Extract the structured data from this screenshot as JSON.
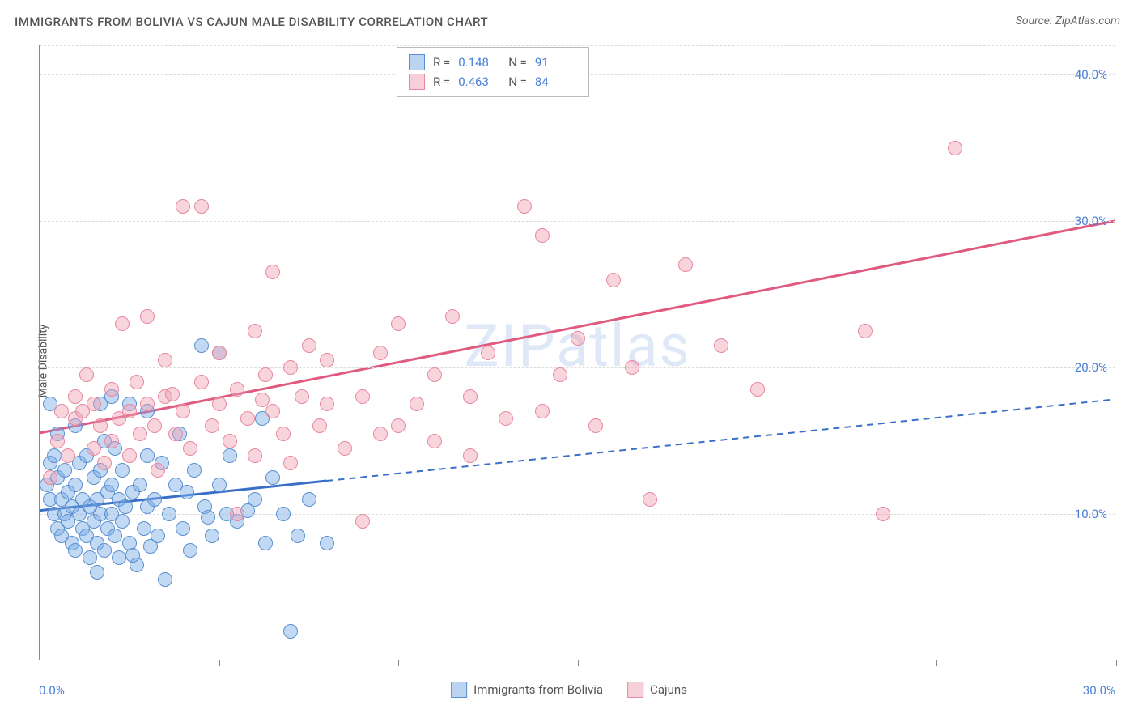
{
  "title": "IMMIGRANTS FROM BOLIVIA VS CAJUN MALE DISABILITY CORRELATION CHART",
  "source": "Source: ZipAtlas.com",
  "y_axis_label": "Male Disability",
  "watermark": "ZIPatlas",
  "chart": {
    "type": "scatter",
    "xlim": [
      0,
      30
    ],
    "ylim": [
      0,
      42
    ],
    "x_ticks_positions": [
      0,
      5,
      10,
      15,
      20,
      25,
      30
    ],
    "x_tick_labels": {
      "first": "0.0%",
      "last": "30.0%"
    },
    "y_gridlines": [
      10,
      20,
      30,
      40
    ],
    "y_tick_labels": [
      "10.0%",
      "20.0%",
      "30.0%",
      "40.0%"
    ],
    "grid_color": "#dddddd",
    "background_color": "#ffffff",
    "marker_radius": 9,
    "series": [
      {
        "name": "Immigrants from Bolivia",
        "color_fill": "rgba(120,170,230,0.45)",
        "color_stroke": "#5a8fd0",
        "r": 0.148,
        "n": 91,
        "trend": {
          "x1": 0,
          "y1": 10.2,
          "x2": 30,
          "y2": 17.8,
          "solid_until_x": 8.0
        },
        "points": [
          [
            0.2,
            12.0
          ],
          [
            0.3,
            13.5
          ],
          [
            0.3,
            11.0
          ],
          [
            0.4,
            10.0
          ],
          [
            0.4,
            14.0
          ],
          [
            0.5,
            15.5
          ],
          [
            0.5,
            9.0
          ],
          [
            0.5,
            12.5
          ],
          [
            0.6,
            11.0
          ],
          [
            0.6,
            8.5
          ],
          [
            0.7,
            10.0
          ],
          [
            0.7,
            13.0
          ],
          [
            0.8,
            9.5
          ],
          [
            0.8,
            11.5
          ],
          [
            0.9,
            10.5
          ],
          [
            0.9,
            8.0
          ],
          [
            1.0,
            12.0
          ],
          [
            1.0,
            7.5
          ],
          [
            1.1,
            10.0
          ],
          [
            1.1,
            13.5
          ],
          [
            1.2,
            9.0
          ],
          [
            1.2,
            11.0
          ],
          [
            1.3,
            14.0
          ],
          [
            1.3,
            8.5
          ],
          [
            1.4,
            10.5
          ],
          [
            1.4,
            7.0
          ],
          [
            1.5,
            12.5
          ],
          [
            1.5,
            9.5
          ],
          [
            1.6,
            11.0
          ],
          [
            1.6,
            8.0
          ],
          [
            1.7,
            13.0
          ],
          [
            1.7,
            10.0
          ],
          [
            1.8,
            7.5
          ],
          [
            1.8,
            15.0
          ],
          [
            1.9,
            11.5
          ],
          [
            1.9,
            9.0
          ],
          [
            2.0,
            10.0
          ],
          [
            2.0,
            12.0
          ],
          [
            2.1,
            8.5
          ],
          [
            2.1,
            14.5
          ],
          [
            2.2,
            11.0
          ],
          [
            2.2,
            7.0
          ],
          [
            2.3,
            9.5
          ],
          [
            2.3,
            13.0
          ],
          [
            2.4,
            10.5
          ],
          [
            2.5,
            8.0
          ],
          [
            2.5,
            17.5
          ],
          [
            2.6,
            11.5
          ],
          [
            2.7,
            6.5
          ],
          [
            2.8,
            12.0
          ],
          [
            2.9,
            9.0
          ],
          [
            3.0,
            10.5
          ],
          [
            3.0,
            14.0
          ],
          [
            3.1,
            7.8
          ],
          [
            3.2,
            11.0
          ],
          [
            3.3,
            8.5
          ],
          [
            3.4,
            13.5
          ],
          [
            3.5,
            5.5
          ],
          [
            3.6,
            10.0
          ],
          [
            3.8,
            12.0
          ],
          [
            3.9,
            15.5
          ],
          [
            4.0,
            9.0
          ],
          [
            4.1,
            11.5
          ],
          [
            4.2,
            7.5
          ],
          [
            4.3,
            13.0
          ],
          [
            4.5,
            21.5
          ],
          [
            4.6,
            10.5
          ],
          [
            4.8,
            8.5
          ],
          [
            5.0,
            21.0
          ],
          [
            5.0,
            12.0
          ],
          [
            5.2,
            10.0
          ],
          [
            5.3,
            14.0
          ],
          [
            5.5,
            9.5
          ],
          [
            5.8,
            10.2
          ],
          [
            6.0,
            11.0
          ],
          [
            6.2,
            16.5
          ],
          [
            6.3,
            8.0
          ],
          [
            6.5,
            12.5
          ],
          [
            6.8,
            10.0
          ],
          [
            7.0,
            2.0
          ],
          [
            7.2,
            8.5
          ],
          [
            7.5,
            11.0
          ],
          [
            8.0,
            8.0
          ],
          [
            1.6,
            6.0
          ],
          [
            2.0,
            18.0
          ],
          [
            0.3,
            17.5
          ],
          [
            1.0,
            16.0
          ],
          [
            4.7,
            9.8
          ],
          [
            3.0,
            17.0
          ],
          [
            1.7,
            17.5
          ],
          [
            2.6,
            7.2
          ]
        ]
      },
      {
        "name": "Cajuns",
        "color_fill": "rgba(240,160,180,0.45)",
        "color_stroke": "#e888a0",
        "r": 0.463,
        "n": 84,
        "trend": {
          "x1": 0,
          "y1": 15.5,
          "x2": 30,
          "y2": 30.0,
          "solid_until_x": 30
        },
        "points": [
          [
            0.3,
            12.5
          ],
          [
            0.5,
            15.0
          ],
          [
            0.6,
            17.0
          ],
          [
            0.8,
            14.0
          ],
          [
            1.0,
            16.5
          ],
          [
            1.0,
            18.0
          ],
          [
            1.2,
            17.0
          ],
          [
            1.3,
            19.5
          ],
          [
            1.5,
            14.5
          ],
          [
            1.5,
            17.5
          ],
          [
            1.7,
            16.0
          ],
          [
            1.8,
            13.5
          ],
          [
            2.0,
            18.5
          ],
          [
            2.0,
            15.0
          ],
          [
            2.2,
            16.5
          ],
          [
            2.3,
            23.0
          ],
          [
            2.5,
            17.0
          ],
          [
            2.5,
            14.0
          ],
          [
            2.7,
            19.0
          ],
          [
            2.8,
            15.5
          ],
          [
            3.0,
            17.5
          ],
          [
            3.0,
            23.5
          ],
          [
            3.2,
            16.0
          ],
          [
            3.3,
            13.0
          ],
          [
            3.5,
            18.0
          ],
          [
            3.5,
            20.5
          ],
          [
            3.8,
            15.5
          ],
          [
            4.0,
            17.0
          ],
          [
            4.0,
            31.0
          ],
          [
            4.2,
            14.5
          ],
          [
            4.5,
            31.0
          ],
          [
            4.5,
            19.0
          ],
          [
            4.8,
            16.0
          ],
          [
            5.0,
            21.0
          ],
          [
            5.0,
            17.5
          ],
          [
            5.3,
            15.0
          ],
          [
            5.5,
            18.5
          ],
          [
            5.5,
            10.0
          ],
          [
            5.8,
            16.5
          ],
          [
            6.0,
            22.5
          ],
          [
            6.0,
            14.0
          ],
          [
            6.3,
            19.5
          ],
          [
            6.5,
            17.0
          ],
          [
            6.5,
            26.5
          ],
          [
            6.8,
            15.5
          ],
          [
            7.0,
            20.0
          ],
          [
            7.0,
            13.5
          ],
          [
            7.3,
            18.0
          ],
          [
            7.5,
            21.5
          ],
          [
            7.8,
            16.0
          ],
          [
            8.0,
            17.5
          ],
          [
            8.0,
            20.5
          ],
          [
            8.5,
            14.5
          ],
          [
            9.0,
            18.0
          ],
          [
            9.0,
            9.5
          ],
          [
            9.5,
            21.0
          ],
          [
            10.0,
            16.0
          ],
          [
            10.0,
            23.0
          ],
          [
            10.5,
            17.5
          ],
          [
            11.0,
            19.5
          ],
          [
            11.0,
            15.0
          ],
          [
            11.5,
            23.5
          ],
          [
            12.0,
            18.0
          ],
          [
            12.0,
            14.0
          ],
          [
            12.5,
            21.0
          ],
          [
            13.0,
            16.5
          ],
          [
            13.5,
            31.0
          ],
          [
            14.0,
            29.0
          ],
          [
            14.0,
            17.0
          ],
          [
            14.5,
            19.5
          ],
          [
            15.0,
            22.0
          ],
          [
            15.5,
            16.0
          ],
          [
            16.0,
            26.0
          ],
          [
            16.5,
            20.0
          ],
          [
            17.0,
            11.0
          ],
          [
            18.0,
            27.0
          ],
          [
            19.0,
            21.5
          ],
          [
            20.0,
            18.5
          ],
          [
            23.0,
            22.5
          ],
          [
            23.5,
            10.0
          ],
          [
            25.5,
            35.0
          ],
          [
            9.5,
            15.5
          ],
          [
            6.2,
            17.8
          ],
          [
            3.7,
            18.2
          ]
        ]
      }
    ]
  },
  "bottom_legend": {
    "series1": "Immigrants from Bolivia",
    "series2": "Cajuns"
  }
}
